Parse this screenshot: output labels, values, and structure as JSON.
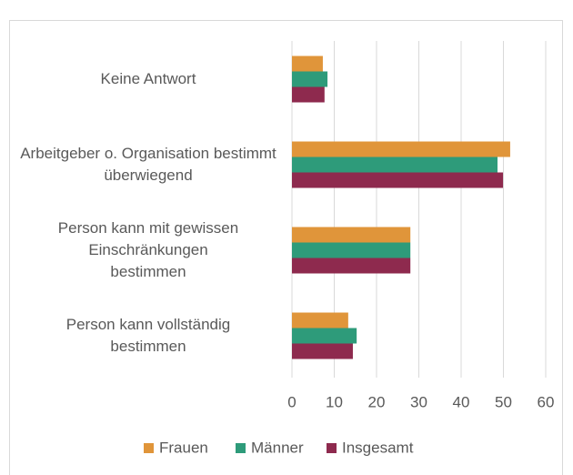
{
  "chart_data": {
    "type": "hbar",
    "categories": [
      "Keine Antwort",
      "Arbeitgeber o. Organisation bestimmt überwiegend",
      "Person kann mit gewissen Einschränkungen bestimmen",
      "Person kann vollständig bestimmen"
    ],
    "series": [
      {
        "name": "Frauen",
        "color": "#e0953a",
        "values": [
          7.3,
          51.6,
          28,
          13.3
        ]
      },
      {
        "name": "Männer",
        "color": "#2e9b7a",
        "values": [
          8.4,
          48.6,
          28,
          15.3
        ]
      },
      {
        "name": "Insgesamt",
        "color": "#8e2a4e",
        "values": [
          7.7,
          49.9,
          28,
          14.4
        ]
      }
    ],
    "xlim": [
      0,
      60
    ],
    "xticks": [
      0,
      10,
      20,
      30,
      40,
      50,
      60
    ],
    "grid": true,
    "legend": "bottom"
  }
}
